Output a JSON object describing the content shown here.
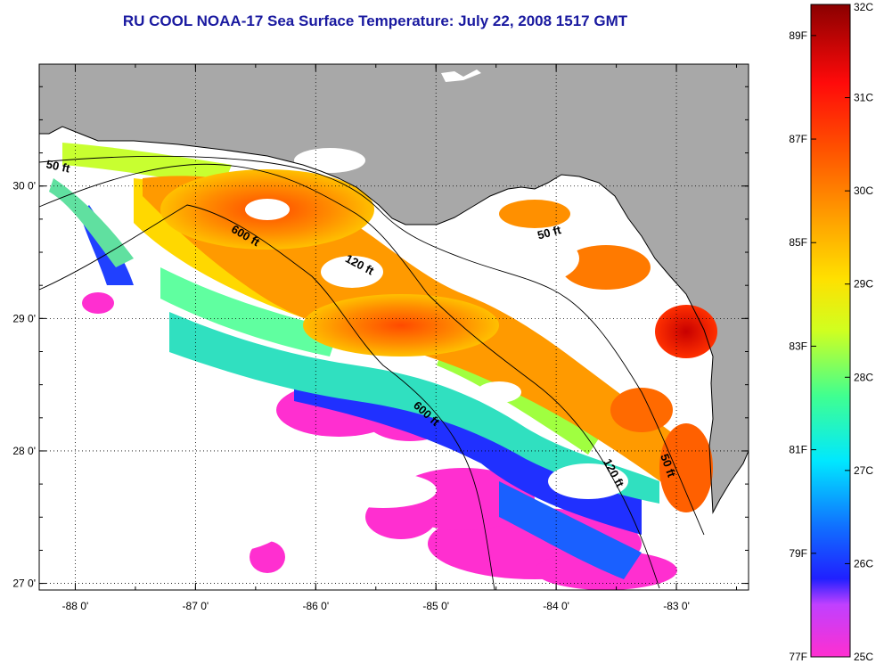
{
  "title": "RU COOL  NOAA-17  Sea Surface Temperature:  July 22, 2008 1517 GMT",
  "map": {
    "lon_range": [
      -88.3,
      -82.4
    ],
    "lat_range": [
      26.95,
      30.92
    ],
    "lon_ticks": [
      {
        "value": -88,
        "label": "-88 0'"
      },
      {
        "value": -87,
        "label": "-87 0'"
      },
      {
        "value": -86,
        "label": "-86 0'"
      },
      {
        "value": -85,
        "label": "-85 0'"
      },
      {
        "value": -84,
        "label": "-84 0'"
      },
      {
        "value": -83,
        "label": "-83 0'"
      }
    ],
    "lat_ticks": [
      {
        "value": 27,
        "label": "27 0'"
      },
      {
        "value": 28,
        "label": "28 0'"
      },
      {
        "value": 29,
        "label": "29 0'"
      },
      {
        "value": 30,
        "label": "30 0'"
      }
    ],
    "land_color": "#a8a8a8",
    "grid": "dotted",
    "contour_labels": [
      {
        "text": "50 ft",
        "lon": -88.15,
        "lat": 30.12,
        "angle": 12
      },
      {
        "text": "600 ft",
        "lon": -86.6,
        "lat": 29.6,
        "angle": 30
      },
      {
        "text": "120 ft",
        "lon": -85.65,
        "lat": 29.38,
        "angle": 28
      },
      {
        "text": "50 ft",
        "lon": -84.05,
        "lat": 29.62,
        "angle": -15
      },
      {
        "text": "600 ft",
        "lon": -85.1,
        "lat": 28.26,
        "angle": 42
      },
      {
        "text": "120 ft",
        "lon": -83.55,
        "lat": 27.82,
        "angle": 62
      },
      {
        "text": "50 ft",
        "lon": -83.1,
        "lat": 27.88,
        "angle": 70
      }
    ]
  },
  "colorbar": {
    "celsius": [
      {
        "value": 32,
        "label": "32C"
      },
      {
        "value": 31,
        "label": "31C"
      },
      {
        "value": 30,
        "label": "30C"
      },
      {
        "value": 29,
        "label": "29C"
      },
      {
        "value": 28,
        "label": "28C"
      },
      {
        "value": 27,
        "label": "27C"
      },
      {
        "value": 26,
        "label": "26C"
      },
      {
        "value": 25,
        "label": "25C"
      }
    ],
    "fahrenheit": [
      {
        "value": 89,
        "label": "89F"
      },
      {
        "value": 87,
        "label": "87F"
      },
      {
        "value": 85,
        "label": "85F"
      },
      {
        "value": 83,
        "label": "83F"
      },
      {
        "value": 81,
        "label": "81F"
      },
      {
        "value": 79,
        "label": "79F"
      },
      {
        "value": 77,
        "label": "77F"
      }
    ],
    "range_c": [
      25,
      32
    ],
    "stops": [
      {
        "at": 0.0,
        "color": "#ff2fd0"
      },
      {
        "at": 0.08,
        "color": "#c040ff"
      },
      {
        "at": 0.12,
        "color": "#2020ff"
      },
      {
        "at": 0.2,
        "color": "#1070ff"
      },
      {
        "at": 0.3,
        "color": "#00e8ff"
      },
      {
        "at": 0.4,
        "color": "#40ff90"
      },
      {
        "at": 0.5,
        "color": "#d0ff20"
      },
      {
        "at": 0.58,
        "color": "#ffe000"
      },
      {
        "at": 0.68,
        "color": "#ff9a00"
      },
      {
        "at": 0.78,
        "color": "#ff5000"
      },
      {
        "at": 0.88,
        "color": "#ff0a0a"
      },
      {
        "at": 1.0,
        "color": "#8a0000"
      }
    ]
  }
}
